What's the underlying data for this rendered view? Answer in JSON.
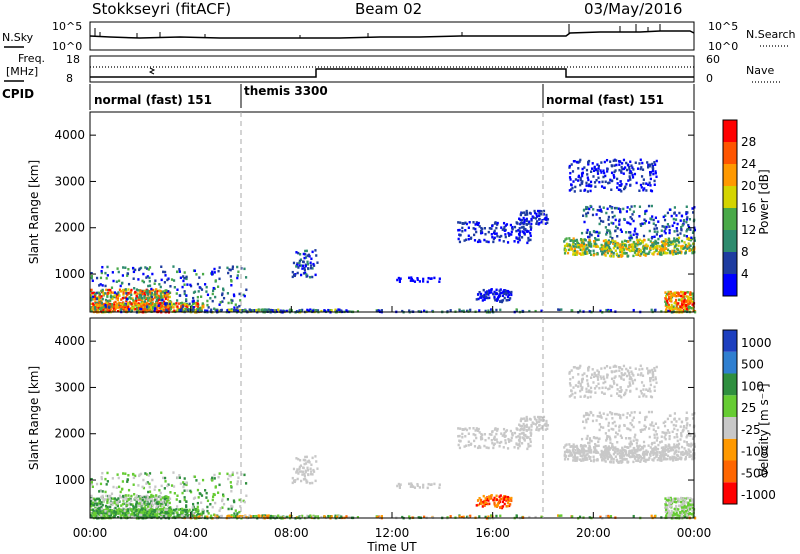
{
  "header": {
    "title": "Stokkseyri (fitACF)",
    "beam": "Beam 02",
    "date": "03/May/2016"
  },
  "top_panels": {
    "nsky_label": "N.Sky",
    "nsearch_label": "N.Search",
    "freq_label": "Freq.",
    "freq_unit": "[MHz]",
    "nave_label": "Nave",
    "cpid_label": "CPID",
    "noise_ticks": [
      "10^5",
      "10^0"
    ],
    "freq_ticks": [
      "18",
      "8"
    ],
    "nave_ticks": [
      "60",
      "0"
    ],
    "cpid_segments": [
      {
        "label": "normal (fast) 151",
        "start_hour": 0
      },
      {
        "label": "themis 3300",
        "start_hour": 6
      },
      {
        "label": "normal (fast) 151",
        "start_hour": 18
      }
    ]
  },
  "chart_data": [
    {
      "type": "heatmap",
      "name": "Power",
      "ylabel": "Slant Range [km]",
      "xlim_hours": [
        0,
        24
      ],
      "ylim": [
        180,
        4500
      ],
      "yticks": [
        "1000",
        "2000",
        "3000",
        "4000"
      ],
      "colorbar_label": "Power [dB]",
      "colorbar_ticks": [
        "4",
        "8",
        "12",
        "16",
        "20",
        "24",
        "28"
      ],
      "colorbar_colors": [
        "#0000ff",
        "#1e3ca0",
        "#2e8b6e",
        "#49a948",
        "#d4d400",
        "#ff9900",
        "#ff5500",
        "#ff0000"
      ]
    },
    {
      "type": "heatmap",
      "name": "Velocity",
      "ylabel": "Slant Range [km]",
      "xlabel": "Time UT",
      "xlim_hours": [
        0,
        24
      ],
      "ylim": [
        180,
        4500
      ],
      "yticks": [
        "1000",
        "2000",
        "3000",
        "4000"
      ],
      "xticks": [
        "00:00",
        "04:00",
        "08:00",
        "12:00",
        "16:00",
        "20:00",
        "00:00"
      ],
      "colorbar_label": "Velocity [m s⁻¹]",
      "colorbar_ticks": [
        "1000",
        "500",
        "100",
        "25",
        "-25",
        "-100",
        "-500",
        "-1000"
      ],
      "colorbar_colors": [
        "#1d3fbf",
        "#2f7fd0",
        "#2f8f3f",
        "#66cc33",
        "#c8c8c8",
        "#ff9900",
        "#ff6600",
        "#ff0000"
      ]
    }
  ],
  "cpid_change_hours": [
    6,
    18
  ]
}
